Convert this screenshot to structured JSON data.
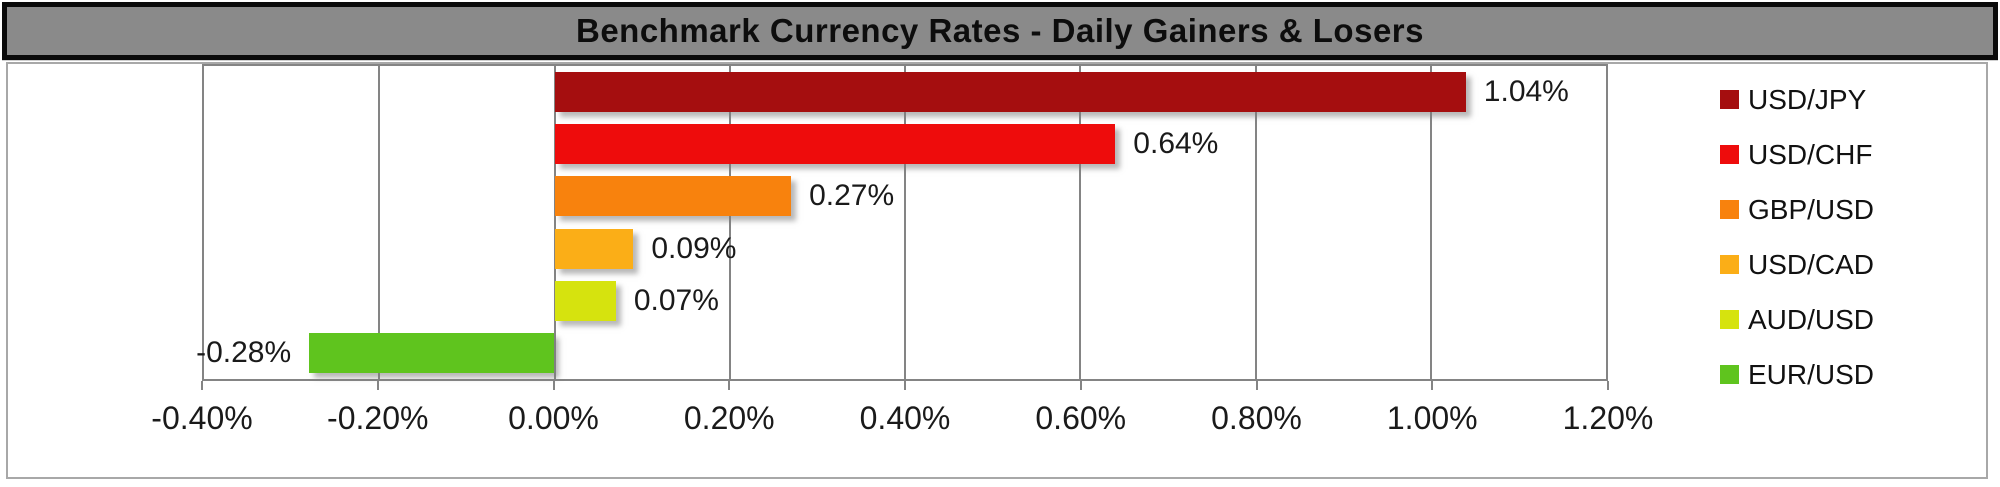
{
  "chart": {
    "title": "Benchmark Currency Rates - Daily Gainers & Losers"
  },
  "chart_data": {
    "type": "bar",
    "orientation": "horizontal",
    "title": "Benchmark Currency Rates - Daily Gainers & Losers",
    "categories": [
      "USD/JPY",
      "USD/CHF",
      "GBP/USD",
      "USD/CAD",
      "AUD/USD",
      "EUR/USD"
    ],
    "values": [
      1.04,
      0.64,
      0.27,
      0.09,
      0.07,
      -0.28
    ],
    "value_labels": [
      "1.04%",
      "0.64%",
      "0.27%",
      "0.09%",
      "0.07%",
      "-0.28%"
    ],
    "bar_colors": [
      "#A50E0F",
      "#EE0C0C",
      "#F8820D",
      "#FBAE17",
      "#D6E30E",
      "#5FC41E"
    ],
    "xlim": [
      -0.4,
      1.2
    ],
    "x_ticks": [
      -0.4,
      -0.2,
      0,
      0.2,
      0.4,
      0.6,
      0.8,
      1.0,
      1.2
    ],
    "x_tick_labels": [
      "-0.40%",
      "-0.20%",
      "0.00%",
      "0.20%",
      "0.40%",
      "0.60%",
      "0.80%",
      "1.00%",
      "1.20%"
    ],
    "grid": true,
    "legend_position": "right"
  },
  "colors": {
    "title_bar_bg": "#8A8A8A",
    "title_border": "#0a0a0a",
    "chart_border": "#A8A8A8",
    "gridline": "#848484",
    "text": "#1a1a1a"
  }
}
